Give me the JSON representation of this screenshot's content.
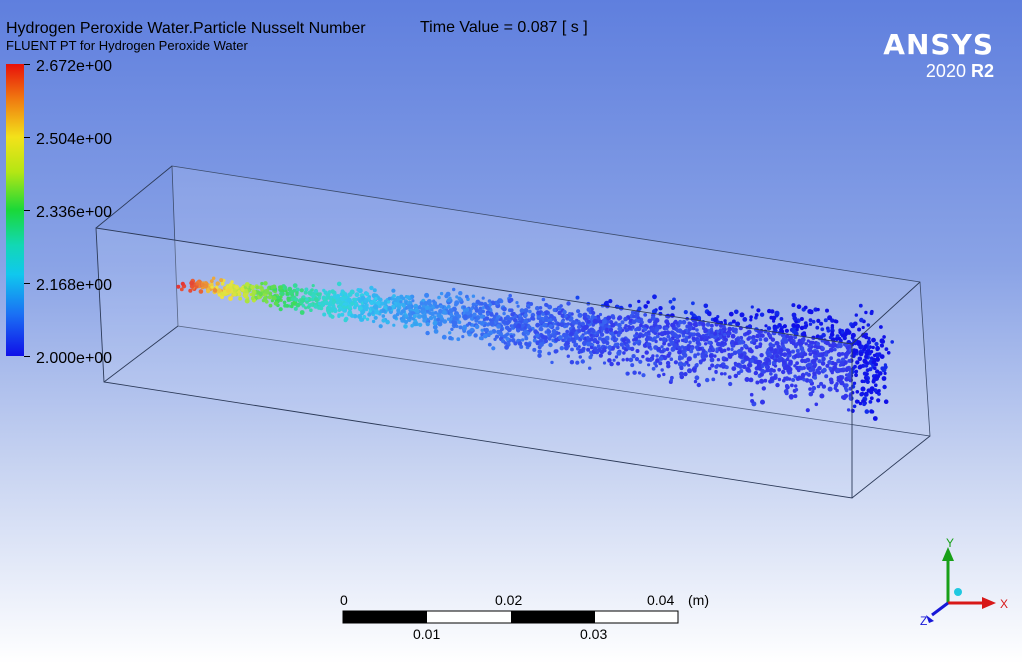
{
  "header": {
    "title": "Hydrogen Peroxide Water.Particle Nusselt Number",
    "subtitle": "FLUENT PT for Hydrogen Peroxide Water",
    "time_value": "Time Value = 0.087 [ s ]"
  },
  "logo": {
    "brand": "ANSYS",
    "version_year": "2020",
    "version_release": "R2"
  },
  "legend": {
    "labels": [
      "2.672e+00",
      "2.504e+00",
      "2.336e+00",
      "2.168e+00",
      "2.000e+00"
    ],
    "colors": [
      "#e8100a",
      "#f3e21a",
      "#1ad838",
      "#10c8ee",
      "#1010e8"
    ]
  },
  "scale": {
    "top_labels": [
      "0",
      "0.02",
      "0.04"
    ],
    "unit": "(m)",
    "bottom_labels": [
      "0.01",
      "0.03"
    ]
  },
  "axes": {
    "x": "X",
    "y": "Y",
    "z": "Z"
  }
}
